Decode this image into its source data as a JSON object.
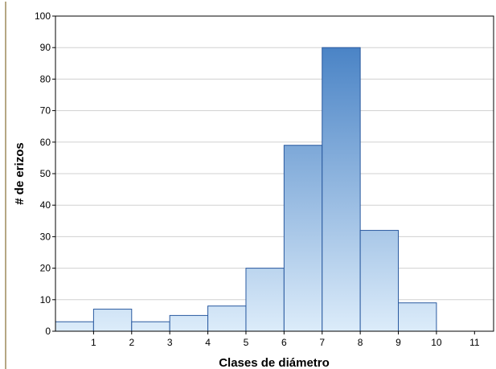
{
  "chart_data": {
    "type": "bar",
    "title": "",
    "xlabel": "Clases de diámetro",
    "ylabel": "# de erizos",
    "bin_edges": [
      0,
      1,
      2,
      3,
      4,
      5,
      6,
      7,
      8,
      9,
      10,
      11
    ],
    "values": [
      3,
      7,
      3,
      5,
      8,
      20,
      59,
      90,
      32,
      9,
      0
    ],
    "x_ticks": [
      "1",
      "2",
      "3",
      "4",
      "5",
      "6",
      "7",
      "8",
      "9",
      "10",
      "11"
    ],
    "y_ticks": [
      "0",
      "10",
      "20",
      "30",
      "40",
      "50",
      "60",
      "70",
      "80",
      "90",
      "100"
    ],
    "xlim": [
      0,
      11.5
    ],
    "ylim": [
      0,
      100
    ],
    "grid": true,
    "legend": "none",
    "colors": {
      "bar_low": "#dcecfa",
      "bar_high": "#3a78c0",
      "bar_stroke": "#2a5aa0",
      "grid": "#d0d0d0",
      "frame_accent": "#9e8a5a"
    }
  }
}
